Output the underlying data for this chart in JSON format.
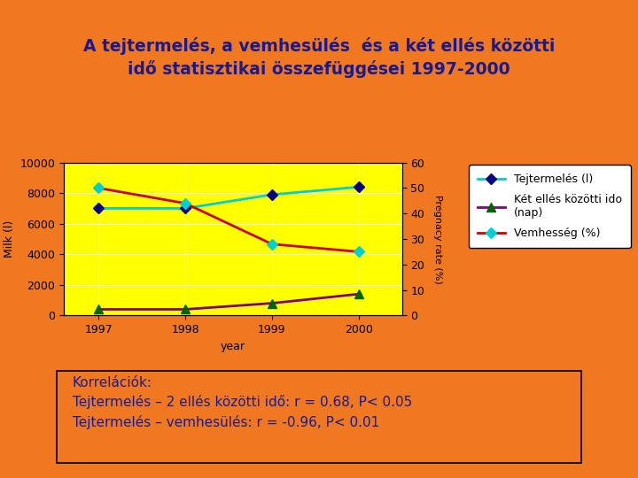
{
  "title_line1": "A tejtermelés, a vemhesülés  és a két ellés közötti",
  "title_line2": "idő statisztikai összefüggései 1997-2000",
  "title_color": "#1A1A8C",
  "background_color": "#F07820",
  "plot_bg_color": "#FFFF00",
  "years": [
    1997,
    1998,
    1999,
    2000
  ],
  "tejtermelés": [
    7000,
    7000,
    7900,
    8400
  ],
  "ket_elles": [
    400,
    400,
    800,
    1400
  ],
  "vemhesseg_pct": [
    50,
    44,
    28,
    25
  ],
  "tejt_color": "#00CED1",
  "tejt_marker_color": "#000080",
  "ket_elles_color": "#800080",
  "ket_elles_marker_color": "#006400",
  "vemhesseg_color": "#CC0000",
  "vemhesseg_marker_color": "#00CED1",
  "ylabel_left": "Milk (l)",
  "ylabel_right": "Pregnacy rate (%)",
  "xlabel": "year",
  "ylim_left": [
    0,
    10000
  ],
  "ylim_right": [
    0,
    60
  ],
  "yticks_left": [
    0,
    2000,
    4000,
    6000,
    8000,
    10000
  ],
  "yticks_right": [
    0,
    10,
    20,
    30,
    40,
    50,
    60
  ],
  "legend_tejt": "Tejtermelés (l)",
  "legend_ket": "Két ellés közötti ido\n(nap)",
  "legend_vemh": "Vemhesség (%)",
  "korr_text": "Korrelációk:\nTejtermelés – 2 ellés közötti idő: r = 0.68, P< 0.05\nTejtermelés – vemhesülés: r = -0.96, P< 0.01",
  "korr_text_color": "#1A1A8C",
  "korr_fontsize": 11,
  "tape_color": "#D4B86A"
}
